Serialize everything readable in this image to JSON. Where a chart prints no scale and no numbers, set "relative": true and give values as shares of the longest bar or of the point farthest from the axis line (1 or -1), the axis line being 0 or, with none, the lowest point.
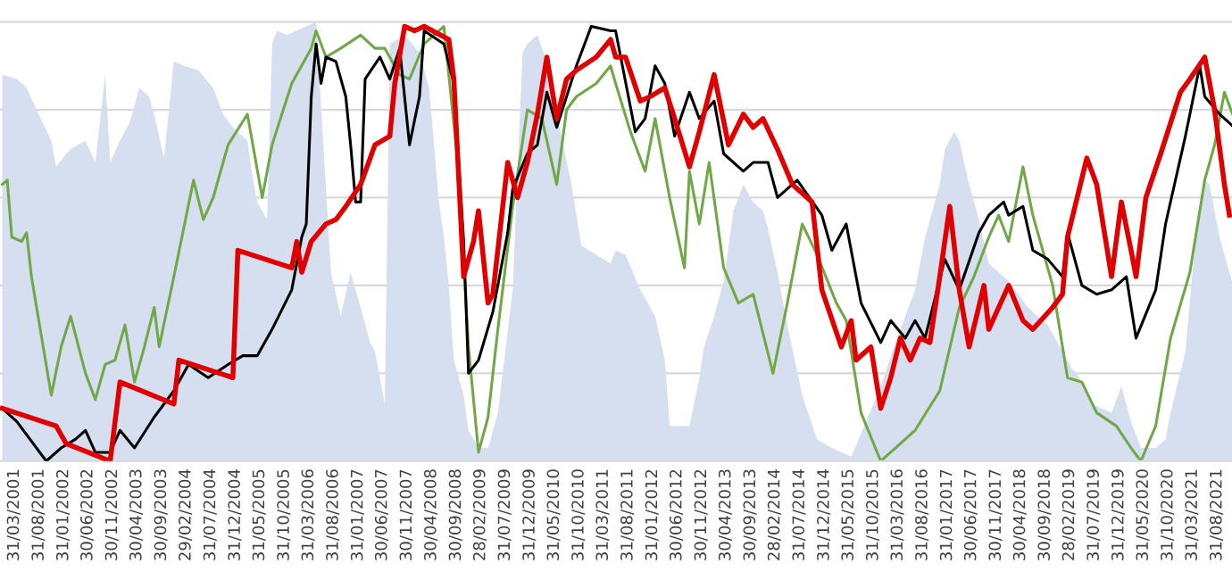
{
  "chart_data": {
    "type": "line",
    "relative": true,
    "grid": "y",
    "xlim": [
      "2001-01-01",
      "2021-12-01"
    ],
    "xticks": [
      {
        "value": "2001-03-31",
        "label": "31/03/2001"
      },
      {
        "value": "2001-08-31",
        "label": "31/08/2001"
      },
      {
        "value": "2002-01-31",
        "label": "31/01/2002"
      },
      {
        "value": "2002-06-30",
        "label": "30/06/2002"
      },
      {
        "value": "2002-11-30",
        "label": "30/11/2002"
      },
      {
        "value": "2003-04-30",
        "label": "30/04/2003"
      },
      {
        "value": "2003-09-30",
        "label": "30/09/2003"
      },
      {
        "value": "2004-02-29",
        "label": "29/02/2004"
      },
      {
        "value": "2004-07-31",
        "label": "31/07/2004"
      },
      {
        "value": "2004-12-31",
        "label": "31/12/2004"
      },
      {
        "value": "2005-05-31",
        "label": "31/05/2005"
      },
      {
        "value": "2005-10-31",
        "label": "31/10/2005"
      },
      {
        "value": "2006-03-31",
        "label": "31/03/2006"
      },
      {
        "value": "2006-08-31",
        "label": "31/08/2006"
      },
      {
        "value": "2007-01-31",
        "label": "31/01/2007"
      },
      {
        "value": "2007-06-30",
        "label": "30/06/2007"
      },
      {
        "value": "2007-11-30",
        "label": "30/11/2007"
      },
      {
        "value": "2008-04-30",
        "label": "30/04/2008"
      },
      {
        "value": "2008-09-30",
        "label": "30/09/2008"
      },
      {
        "value": "2009-02-28",
        "label": "28/02/2009"
      },
      {
        "value": "2009-07-31",
        "label": "31/07/2009"
      },
      {
        "value": "2009-12-31",
        "label": "31/12/2009"
      },
      {
        "value": "2010-05-31",
        "label": "31/05/2010"
      },
      {
        "value": "2010-10-31",
        "label": "31/10/2010"
      },
      {
        "value": "2011-03-31",
        "label": "31/03/2011"
      },
      {
        "value": "2011-08-31",
        "label": "31/08/2011"
      },
      {
        "value": "2012-01-31",
        "label": "31/01/2012"
      },
      {
        "value": "2012-06-30",
        "label": "30/06/2012"
      },
      {
        "value": "2012-11-30",
        "label": "30/11/2012"
      },
      {
        "value": "2013-04-30",
        "label": "30/04/2013"
      },
      {
        "value": "2013-09-30",
        "label": "30/09/2013"
      },
      {
        "value": "2014-02-28",
        "label": "28/02/2014"
      },
      {
        "value": "2014-07-31",
        "label": "31/07/2014"
      },
      {
        "value": "2014-12-31",
        "label": "31/12/2014"
      },
      {
        "value": "2015-05-31",
        "label": "31/05/2015"
      },
      {
        "value": "2015-10-31",
        "label": "31/10/2015"
      },
      {
        "value": "2016-03-31",
        "label": "31/03/2016"
      },
      {
        "value": "2016-08-31",
        "label": "31/08/2016"
      },
      {
        "value": "2017-01-31",
        "label": "31/01/2017"
      },
      {
        "value": "2017-06-30",
        "label": "30/06/2017"
      },
      {
        "value": "2017-11-30",
        "label": "30/11/2017"
      },
      {
        "value": "2018-04-30",
        "label": "30/04/2018"
      },
      {
        "value": "2018-09-30",
        "label": "30/09/2018"
      },
      {
        "value": "2019-02-28",
        "label": "28/02/2019"
      },
      {
        "value": "2019-07-31",
        "label": "31/07/2019"
      },
      {
        "value": "2019-12-31",
        "label": "31/12/2019"
      },
      {
        "value": "2020-05-31",
        "label": "31/05/2020"
      },
      {
        "value": "2020-10-31",
        "label": "31/10/2020"
      },
      {
        "value": "2021-03-31",
        "label": "31/03/2021"
      },
      {
        "value": "2021-08-31",
        "label": "31/08/2021"
      }
    ],
    "series": [
      {
        "type": "area",
        "color": "#d6dff0",
        "x": [
          "2001-01",
          "2001-04",
          "2001-06",
          "2001-08",
          "2001-11",
          "2001-12",
          "2002-02",
          "2002-03",
          "2002-06",
          "2002-08",
          "2002-10",
          "2002-11",
          "2003-01",
          "2003-03",
          "2003-05",
          "2003-07",
          "2003-08",
          "2003-10",
          "2003-12",
          "2004-02",
          "2004-05",
          "2004-08",
          "2004-10",
          "2004-12",
          "2005-03",
          "2005-04",
          "2005-05",
          "2005-07",
          "2005-08",
          "2005-09",
          "2005-11",
          "2006-03",
          "2006-05",
          "2006-08",
          "2006-10",
          "2006-12",
          "2007-02",
          "2007-04",
          "2007-05",
          "2007-07",
          "2007-08",
          "2007-11",
          "2008-02",
          "2008-04",
          "2008-06",
          "2008-07",
          "2008-08",
          "2008-09",
          "2008-11",
          "2008-12",
          "2009-02",
          "2009-04",
          "2009-06",
          "2009-09",
          "2009-11",
          "2009-12",
          "2010-02",
          "2010-04",
          "2010-06",
          "2010-09",
          "2010-11",
          "2011-02",
          "2011-05",
          "2011-06",
          "2011-08",
          "2011-11",
          "2012-02",
          "2012-04",
          "2012-05",
          "2012-09",
          "2012-11",
          "2012-12",
          "2013-02",
          "2013-04",
          "2013-06",
          "2013-08",
          "2013-10",
          "2013-12",
          "2014-01",
          "2014-03",
          "2014-05",
          "2014-08",
          "2014-11",
          "2015-02",
          "2015-06",
          "2015-09",
          "2015-12",
          "2016-03",
          "2016-07",
          "2016-09",
          "2016-12",
          "2017-01",
          "2017-03",
          "2017-04",
          "2017-06",
          "2017-08",
          "2017-10",
          "2018-02",
          "2018-06",
          "2018-10",
          "2019-01",
          "2019-03",
          "2019-04",
          "2019-07",
          "2019-11",
          "2020-01",
          "2020-03",
          "2020-05",
          "2020-08",
          "2020-10",
          "2020-11",
          "2021-02",
          "2021-04",
          "2021-06",
          "2021-07",
          "2021-09",
          "2021-11",
          "2021-12"
        ],
        "values": [
          0.88,
          0.87,
          0.85,
          0.8,
          0.73,
          0.67,
          0.7,
          0.71,
          0.73,
          0.68,
          0.88,
          0.68,
          0.73,
          0.77,
          0.85,
          0.83,
          0.79,
          0.69,
          0.91,
          0.9,
          0.89,
          0.85,
          0.79,
          0.76,
          0.73,
          0.65,
          0.59,
          0.55,
          0.95,
          0.98,
          0.97,
          0.99,
          1.0,
          0.43,
          0.33,
          0.43,
          0.35,
          0.27,
          0.25,
          0.13,
          0.95,
          0.97,
          0.93,
          0.85,
          0.59,
          0.51,
          0.4,
          0.23,
          0.15,
          0.07,
          0.03,
          0.03,
          0.11,
          0.39,
          0.93,
          0.95,
          0.97,
          0.91,
          0.79,
          0.63,
          0.49,
          0.47,
          0.45,
          0.48,
          0.47,
          0.39,
          0.33,
          0.23,
          0.08,
          0.08,
          0.19,
          0.26,
          0.33,
          0.41,
          0.57,
          0.63,
          0.59,
          0.57,
          0.53,
          0.43,
          0.31,
          0.15,
          0.05,
          0.03,
          0.01,
          0.09,
          0.17,
          0.27,
          0.39,
          0.51,
          0.63,
          0.71,
          0.75,
          0.73,
          0.63,
          0.55,
          0.45,
          0.41,
          0.35,
          0.31,
          0.25,
          0.21,
          0.2,
          0.13,
          0.11,
          0.17,
          0.09,
          0.03,
          0.03,
          0.05,
          0.11,
          0.25,
          0.49,
          0.64,
          0.63,
          0.51,
          0.43,
          0.39
        ]
      },
      {
        "color": "#70a848",
        "x": [
          "2001-01",
          "2001-02",
          "2001-03",
          "2001-05",
          "2001-06",
          "2001-07",
          "2001-11",
          "2002-01",
          "2002-03",
          "2002-06",
          "2002-08",
          "2002-10",
          "2002-12",
          "2003-02",
          "2003-04",
          "2003-06",
          "2003-08",
          "2003-09",
          "2003-12",
          "2004-04",
          "2004-06",
          "2004-08",
          "2004-11",
          "2005-03",
          "2005-06",
          "2005-08",
          "2005-12",
          "2006-04",
          "2006-05",
          "2006-07",
          "2006-10",
          "2007-02",
          "2007-05",
          "2007-07",
          "2007-10",
          "2007-12",
          "2008-03",
          "2008-07",
          "2008-10",
          "2008-12",
          "2009-02",
          "2009-04",
          "2009-06",
          "2009-09",
          "2009-12",
          "2010-03",
          "2010-06",
          "2010-08",
          "2010-10",
          "2011-02",
          "2011-05",
          "2011-06",
          "2011-09",
          "2011-12",
          "2012-02",
          "2012-05",
          "2012-08",
          "2012-09",
          "2012-11",
          "2013-01",
          "2013-04",
          "2013-07",
          "2013-10",
          "2014-02",
          "2014-05",
          "2014-08",
          "2014-11",
          "2015-03",
          "2015-05",
          "2015-08",
          "2015-12",
          "2016-04",
          "2016-07",
          "2016-12",
          "2017-04",
          "2017-07",
          "2017-10",
          "2017-12",
          "2018-02",
          "2018-05",
          "2018-07",
          "2018-11",
          "2019-02",
          "2019-05",
          "2019-08",
          "2019-12",
          "2020-03",
          "2020-05",
          "2020-08",
          "2020-11",
          "2021-03",
          "2021-06",
          "2021-08",
          "2021-10",
          "2021-12"
        ],
        "values": [
          0.63,
          0.64,
          0.51,
          0.5,
          0.52,
          0.42,
          0.15,
          0.26,
          0.33,
          0.2,
          0.14,
          0.22,
          0.23,
          0.31,
          0.18,
          0.26,
          0.35,
          0.26,
          0.42,
          0.64,
          0.55,
          0.6,
          0.72,
          0.79,
          0.6,
          0.72,
          0.86,
          0.94,
          0.98,
          0.92,
          0.94,
          0.97,
          0.94,
          0.94,
          0.88,
          0.87,
          0.95,
          0.99,
          0.66,
          0.26,
          0.02,
          0.1,
          0.3,
          0.58,
          0.8,
          0.78,
          0.63,
          0.8,
          0.83,
          0.86,
          0.9,
          0.86,
          0.75,
          0.66,
          0.78,
          0.6,
          0.44,
          0.66,
          0.54,
          0.68,
          0.44,
          0.36,
          0.38,
          0.2,
          0.36,
          0.54,
          0.47,
          0.36,
          0.32,
          0.11,
          0.0,
          0.04,
          0.07,
          0.16,
          0.35,
          0.42,
          0.51,
          0.56,
          0.5,
          0.67,
          0.56,
          0.4,
          0.19,
          0.18,
          0.11,
          0.08,
          0.03,
          0.0,
          0.08,
          0.28,
          0.43,
          0.64,
          0.72,
          0.84,
          0.78
        ]
      },
      {
        "color": "#000000",
        "x": [
          "2001-01",
          "2001-04",
          "2001-10",
          "2002-01",
          "2002-04",
          "2002-06",
          "2002-08",
          "2002-11",
          "2003-01",
          "2003-04",
          "2003-08",
          "2003-12",
          "2004-03",
          "2004-07",
          "2004-11",
          "2005-02",
          "2005-05",
          "2005-08",
          "2005-12",
          "2006-02",
          "2006-03",
          "2006-04",
          "2006-05",
          "2006-06",
          "2006-07",
          "2006-09",
          "2006-11",
          "2006-12",
          "2007-01",
          "2007-02",
          "2007-03",
          "2007-06",
          "2007-08",
          "2007-10",
          "2007-12",
          "2008-02",
          "2008-03",
          "2008-07",
          "2008-09",
          "2008-11",
          "2008-12",
          "2009-02",
          "2009-05",
          "2009-08",
          "2009-09",
          "2009-12",
          "2010-02",
          "2010-04",
          "2010-06",
          "2010-10",
          "2011-01",
          "2011-05",
          "2011-06",
          "2011-10",
          "2011-12",
          "2012-02",
          "2012-04",
          "2012-06",
          "2012-09",
          "2012-11",
          "2013-02",
          "2013-04",
          "2013-08",
          "2013-10",
          "2014-01",
          "2014-03",
          "2014-07",
          "2014-12",
          "2015-02",
          "2015-05",
          "2015-08",
          "2015-12",
          "2016-02",
          "2016-05",
          "2016-07",
          "2016-09",
          "2017-01",
          "2017-04",
          "2017-08",
          "2017-10",
          "2018-01",
          "2018-02",
          "2018-05",
          "2018-07",
          "2018-10",
          "2019-01",
          "2019-02",
          "2019-05",
          "2019-08",
          "2019-11",
          "2020-02",
          "2020-04",
          "2020-08",
          "2020-10",
          "2021-02",
          "2021-05",
          "2021-06",
          "2021-09",
          "2021-12"
        ],
        "values": [
          0.12,
          0.09,
          0.0,
          0.03,
          0.05,
          0.07,
          0.02,
          0.02,
          0.07,
          0.03,
          0.1,
          0.16,
          0.22,
          0.19,
          0.22,
          0.24,
          0.24,
          0.3,
          0.39,
          0.51,
          0.54,
          0.83,
          0.95,
          0.86,
          0.92,
          0.91,
          0.83,
          0.72,
          0.59,
          0.59,
          0.87,
          0.92,
          0.87,
          0.94,
          0.72,
          0.83,
          0.98,
          0.95,
          0.86,
          0.5,
          0.2,
          0.23,
          0.34,
          0.52,
          0.62,
          0.7,
          0.72,
          0.84,
          0.76,
          0.9,
          0.99,
          0.98,
          0.98,
          0.75,
          0.78,
          0.9,
          0.86,
          0.74,
          0.84,
          0.78,
          0.82,
          0.7,
          0.66,
          0.68,
          0.68,
          0.6,
          0.64,
          0.56,
          0.48,
          0.54,
          0.36,
          0.27,
          0.32,
          0.28,
          0.32,
          0.28,
          0.46,
          0.39,
          0.52,
          0.56,
          0.59,
          0.56,
          0.58,
          0.48,
          0.46,
          0.42,
          0.52,
          0.4,
          0.38,
          0.39,
          0.42,
          0.28,
          0.39,
          0.54,
          0.74,
          0.9,
          0.83,
          0.79,
          0.76
        ]
      },
      {
        "color": "#e00000",
        "x": [
          "2001-01",
          "2001-12",
          "2002-02",
          "2002-11",
          "2003-01",
          "2003-12",
          "2004-01",
          "2004-12",
          "2005-01",
          "2005-12",
          "2006-01",
          "2006-02",
          "2006-04",
          "2006-07",
          "2006-09",
          "2006-11",
          "2007-02",
          "2007-05",
          "2007-08",
          "2007-09",
          "2007-11",
          "2008-01",
          "2008-03",
          "2008-08",
          "2008-09",
          "2008-11",
          "2009-01",
          "2009-02",
          "2009-04",
          "2009-05",
          "2009-08",
          "2009-10",
          "2009-12",
          "2010-02",
          "2010-04",
          "2010-06",
          "2010-08",
          "2010-10",
          "2011-02",
          "2011-05",
          "2011-06",
          "2011-08",
          "2011-11",
          "2012-01",
          "2012-04",
          "2012-06",
          "2012-09",
          "2012-11",
          "2013-02",
          "2013-05",
          "2013-08",
          "2013-10",
          "2013-12",
          "2014-03",
          "2014-06",
          "2014-10",
          "2014-12",
          "2015-04",
          "2015-06",
          "2015-07",
          "2015-10",
          "2015-12",
          "2016-02",
          "2016-04",
          "2016-06",
          "2016-08",
          "2016-10",
          "2016-12",
          "2017-02",
          "2017-04",
          "2017-06",
          "2017-09",
          "2017-10",
          "2018-02",
          "2018-05",
          "2018-07",
          "2018-11",
          "2019-01",
          "2019-02",
          "2019-06",
          "2019-08",
          "2019-11",
          "2020-01",
          "2020-03",
          "2020-04",
          "2020-06",
          "2020-09",
          "2021-01",
          "2021-03",
          "2021-06",
          "2021-08",
          "2021-10",
          "2021-11"
        ],
        "values": [
          0.12,
          0.08,
          0.04,
          0.0,
          0.18,
          0.13,
          0.23,
          0.19,
          0.48,
          0.44,
          0.5,
          0.43,
          0.5,
          0.54,
          0.55,
          0.58,
          0.63,
          0.72,
          0.74,
          0.86,
          0.99,
          0.98,
          0.99,
          0.96,
          0.87,
          0.42,
          0.5,
          0.57,
          0.36,
          0.38,
          0.68,
          0.6,
          0.68,
          0.79,
          0.92,
          0.78,
          0.87,
          0.89,
          0.92,
          0.96,
          0.92,
          0.92,
          0.82,
          0.83,
          0.85,
          0.78,
          0.67,
          0.75,
          0.88,
          0.72,
          0.79,
          0.76,
          0.78,
          0.71,
          0.63,
          0.59,
          0.39,
          0.26,
          0.32,
          0.23,
          0.26,
          0.12,
          0.19,
          0.28,
          0.23,
          0.28,
          0.27,
          0.42,
          0.58,
          0.39,
          0.26,
          0.4,
          0.3,
          0.4,
          0.32,
          0.3,
          0.35,
          0.38,
          0.51,
          0.69,
          0.63,
          0.42,
          0.59,
          0.48,
          0.42,
          0.6,
          0.7,
          0.84,
          0.87,
          0.92,
          0.8,
          0.63,
          0.56
        ]
      }
    ]
  }
}
